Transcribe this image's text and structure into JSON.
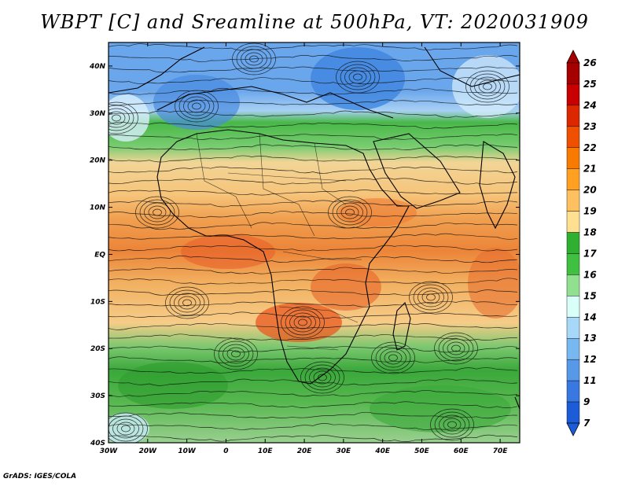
{
  "title": "WBPT [C] and Sreamline at 500hPa, VT: 2020031909",
  "credit": "GrADS: IGES/COLA",
  "map": {
    "lon_range": [
      -30,
      75
    ],
    "lat_range": [
      -40,
      45
    ],
    "lat_labels": [
      "40N",
      "30N",
      "20N",
      "10N",
      "EQ",
      "10S",
      "20S",
      "30S",
      "40S"
    ],
    "lon_labels": [
      "30W",
      "20W",
      "10W",
      "0",
      "10E",
      "20E",
      "30E",
      "40E",
      "50E",
      "60E",
      "70E"
    ]
  },
  "colorbar": {
    "levels": [
      "26",
      "25",
      "24",
      "23",
      "22",
      "21",
      "20",
      "19",
      "18",
      "17",
      "16",
      "15",
      "14",
      "13",
      "12",
      "11",
      "9",
      "7"
    ],
    "colors": [
      "#a50000",
      "#c80000",
      "#dc2800",
      "#ef5000",
      "#f87a00",
      "#ffa020",
      "#ffc060",
      "#ffe090",
      "#30b030",
      "#40c040",
      "#90e090",
      "#d8fff8",
      "#a8d8f8",
      "#78b8f0",
      "#5898e8",
      "#3878e0",
      "#1c5cd8"
    ]
  }
}
